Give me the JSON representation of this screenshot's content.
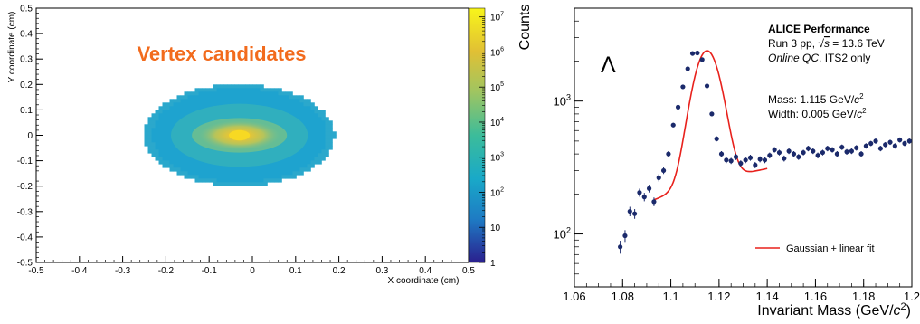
{
  "chart_data": [
    {
      "type": "heatmap",
      "title": "Vertex candidates",
      "xlabel": "X coordinate (cm)",
      "ylabel": "Y coordinate (cm)",
      "xlim": [
        -0.5,
        0.5
      ],
      "ylim": [
        -0.5,
        0.5
      ],
      "x_ticks": [
        "-0.5",
        "-0.4",
        "-0.3",
        "-0.2",
        "-0.1",
        "0",
        "0.1",
        "0.2",
        "0.3",
        "0.4",
        "0.5"
      ],
      "y_ticks": [
        "-0.5",
        "-0.4",
        "-0.3",
        "-0.2",
        "-0.1",
        "0",
        "0.1",
        "0.2",
        "0.3",
        "0.4",
        "0.5"
      ],
      "colorbar": {
        "scale": "log",
        "range": [
          1,
          10000000
        ],
        "labels": [
          {
            "base": "10",
            "exp": "7",
            "value": 10000000
          },
          {
            "base": "10",
            "exp": "6",
            "value": 1000000
          },
          {
            "base": "10",
            "exp": "5",
            "value": 100000
          },
          {
            "base": "10",
            "exp": "4",
            "value": 10000
          },
          {
            "base": "10",
            "exp": "3",
            "value": 1000
          },
          {
            "base": "10",
            "exp": "2",
            "value": 100
          },
          {
            "base": "",
            "exp": "",
            "value": 10,
            "text": "10"
          },
          {
            "base": "",
            "exp": "",
            "value": 1,
            "text": "1"
          }
        ],
        "colors": [
          "#2a1f8e",
          "#1e7bc4",
          "#19a9c8",
          "#3cbc9a",
          "#9fc561",
          "#e1c034",
          "#f8f51a"
        ]
      },
      "distribution": {
        "center": [
          -0.03,
          0.0
        ],
        "outer_radius": [
          0.22,
          0.2
        ],
        "inner_radius": [
          0.11,
          0.068
        ],
        "peak": 10000000
      },
      "title_color": "#f26b1d"
    },
    {
      "type": "scatter",
      "particle_label": "Λ",
      "ylabel": "Counts",
      "xlabel_main": "Invariant Mass (GeV/",
      "xlabel_unit": "c",
      "xlabel_exp": "2",
      "xlabel_close": ")",
      "xlim": [
        1.06,
        1.2
      ],
      "ylim_log": [
        40,
        5000
      ],
      "x_ticks": [
        "1.06",
        "1.08",
        "1.1",
        "1.12",
        "1.14",
        "1.16",
        "1.18",
        "1.2"
      ],
      "y_ticks": [
        {
          "value": 100,
          "base": "10",
          "exp": "2"
        },
        {
          "value": 1000,
          "base": "10",
          "exp": "3"
        }
      ],
      "annotation": {
        "title": "ALICE Performance",
        "run_prefix": "Run 3 pp, ",
        "run_sqrt": "√",
        "run_s": "s",
        "run_suffix": " = 13.6 TeV",
        "qc_italic": "Online QC",
        "qc_rest": ", ITS2 only",
        "mass_text": "Mass: 1.115 GeV/",
        "width_text": "Width: 0.005 GeV/",
        "unit_c": "c",
        "unit_exp": "2"
      },
      "legend": {
        "label": "Gaussian + linear fit",
        "placement": "bottom-right",
        "color": "#e8211c"
      },
      "marker_color": "#1b2a6b",
      "fit": {
        "mean": 1.115,
        "sigma": 0.005,
        "amplitude": 2150,
        "bg_intercept_at_1_10": 200,
        "bg_slope_per_GeV": 2770
      },
      "points": [
        {
          "x": 1.079,
          "y": 80
        },
        {
          "x": 1.081,
          "y": 97
        },
        {
          "x": 1.083,
          "y": 148
        },
        {
          "x": 1.085,
          "y": 142
        },
        {
          "x": 1.087,
          "y": 205
        },
        {
          "x": 1.089,
          "y": 190
        },
        {
          "x": 1.091,
          "y": 220
        },
        {
          "x": 1.093,
          "y": 175
        },
        {
          "x": 1.095,
          "y": 265
        },
        {
          "x": 1.097,
          "y": 300
        },
        {
          "x": 1.099,
          "y": 400
        },
        {
          "x": 1.101,
          "y": 660
        },
        {
          "x": 1.103,
          "y": 900
        },
        {
          "x": 1.105,
          "y": 1280
        },
        {
          "x": 1.107,
          "y": 1750
        },
        {
          "x": 1.109,
          "y": 2280
        },
        {
          "x": 1.111,
          "y": 2300
        },
        {
          "x": 1.113,
          "y": 2050
        },
        {
          "x": 1.115,
          "y": 1300
        },
        {
          "x": 1.117,
          "y": 800
        },
        {
          "x": 1.119,
          "y": 520
        },
        {
          "x": 1.121,
          "y": 400
        },
        {
          "x": 1.123,
          "y": 360
        },
        {
          "x": 1.125,
          "y": 355
        },
        {
          "x": 1.127,
          "y": 380
        },
        {
          "x": 1.129,
          "y": 340
        },
        {
          "x": 1.131,
          "y": 360
        },
        {
          "x": 1.133,
          "y": 375
        },
        {
          "x": 1.135,
          "y": 330
        },
        {
          "x": 1.137,
          "y": 365
        },
        {
          "x": 1.139,
          "y": 360
        },
        {
          "x": 1.141,
          "y": 390
        },
        {
          "x": 1.143,
          "y": 430
        },
        {
          "x": 1.145,
          "y": 410
        },
        {
          "x": 1.147,
          "y": 370
        },
        {
          "x": 1.149,
          "y": 420
        },
        {
          "x": 1.151,
          "y": 400
        },
        {
          "x": 1.153,
          "y": 380
        },
        {
          "x": 1.155,
          "y": 410
        },
        {
          "x": 1.157,
          "y": 440
        },
        {
          "x": 1.159,
          "y": 420
        },
        {
          "x": 1.161,
          "y": 390
        },
        {
          "x": 1.163,
          "y": 410
        },
        {
          "x": 1.165,
          "y": 440
        },
        {
          "x": 1.167,
          "y": 430
        },
        {
          "x": 1.169,
          "y": 400
        },
        {
          "x": 1.171,
          "y": 450
        },
        {
          "x": 1.173,
          "y": 415
        },
        {
          "x": 1.175,
          "y": 420
        },
        {
          "x": 1.177,
          "y": 445
        },
        {
          "x": 1.179,
          "y": 400
        },
        {
          "x": 1.181,
          "y": 460
        },
        {
          "x": 1.183,
          "y": 480
        },
        {
          "x": 1.185,
          "y": 500
        },
        {
          "x": 1.187,
          "y": 440
        },
        {
          "x": 1.189,
          "y": 470
        },
        {
          "x": 1.191,
          "y": 490
        },
        {
          "x": 1.193,
          "y": 460
        },
        {
          "x": 1.195,
          "y": 510
        },
        {
          "x": 1.197,
          "y": 480
        },
        {
          "x": 1.199,
          "y": 500
        }
      ]
    }
  ]
}
